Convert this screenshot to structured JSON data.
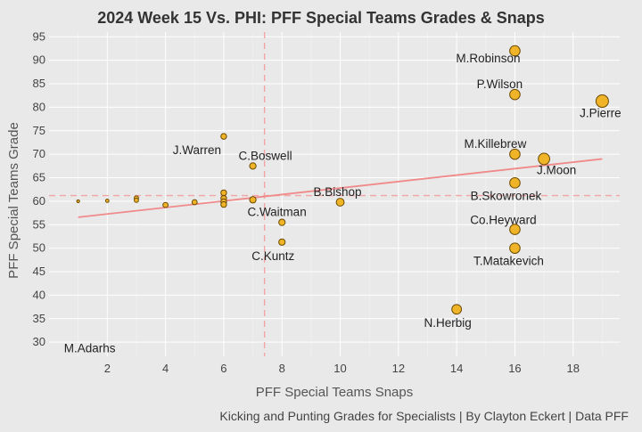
{
  "chart_data": {
    "type": "scatter",
    "title": "2024 Week 15 Vs. PHI: PFF Special Teams Grades & Snaps",
    "xlabel": "PFF Special Teams Snaps",
    "ylabel": "PFF Special Teams Grade",
    "caption": "Kicking and Punting Grades for Specialists | By Clayton Eckert | Data PFF",
    "xlim": [
      0,
      19.6
    ],
    "ylim": [
      27,
      96
    ],
    "xticks": [
      2,
      4,
      6,
      8,
      10,
      12,
      14,
      16,
      18
    ],
    "yticks": [
      30,
      35,
      40,
      45,
      50,
      55,
      60,
      65,
      70,
      75,
      80,
      85,
      90,
      95
    ],
    "grid": true,
    "reference_lines": {
      "x_mean": 7.4,
      "y_mean": 61.2
    },
    "trend_line": {
      "x": [
        1,
        19
      ],
      "y": [
        56.6,
        69.0
      ]
    },
    "colors": {
      "point_fill": "#f0b429",
      "point_stroke": "#6b4a00",
      "trend": "#f08a8a",
      "mean": "#f2a5a5",
      "background": "#e9e9e9"
    },
    "points": [
      {
        "x": 16,
        "y": 92,
        "label": "M.Robinson"
      },
      {
        "x": 16,
        "y": 82.7,
        "label": "P.Wilson"
      },
      {
        "x": 19,
        "y": 81.3,
        "label": "J.Pierre"
      },
      {
        "x": 16,
        "y": 70,
        "label": "M.Killebrew"
      },
      {
        "x": 17,
        "y": 69,
        "label": "J.Moon"
      },
      {
        "x": 16,
        "y": 63.9,
        "label": "B.Skowronek"
      },
      {
        "x": 16,
        "y": 54,
        "label": "Co.Heyward"
      },
      {
        "x": 16,
        "y": 50,
        "label": "T.Matakevich"
      },
      {
        "x": 14,
        "y": 37,
        "label": "N.Herbig"
      },
      {
        "x": 10,
        "y": 59.8,
        "label": "B.Bishop"
      },
      {
        "x": 8,
        "y": 55.5,
        "label": ""
      },
      {
        "x": 8,
        "y": 51.3,
        "label": "C.Kuntz"
      },
      {
        "x": 7,
        "y": 67.5,
        "label": "C.Boswell"
      },
      {
        "x": 7,
        "y": 60.3,
        "label": "C.Waitman"
      },
      {
        "x": 6,
        "y": 73.8,
        "label": "J.Warren"
      },
      {
        "x": 6,
        "y": 61.8,
        "label": ""
      },
      {
        "x": 6,
        "y": 60.6,
        "label": ""
      },
      {
        "x": 6,
        "y": 59.9,
        "label": ""
      },
      {
        "x": 6,
        "y": 59.3,
        "label": ""
      },
      {
        "x": 5,
        "y": 59.8,
        "label": ""
      },
      {
        "x": 4,
        "y": 59.2,
        "label": ""
      },
      {
        "x": 3,
        "y": 60.7,
        "label": ""
      },
      {
        "x": 3,
        "y": 60.2,
        "label": ""
      },
      {
        "x": 2,
        "y": 60.1,
        "label": ""
      },
      {
        "x": 1,
        "y": 60,
        "label": ""
      }
    ],
    "annotations": [
      {
        "x": 0.3,
        "y": 28.8,
        "text": "M.Adarhs"
      }
    ]
  }
}
